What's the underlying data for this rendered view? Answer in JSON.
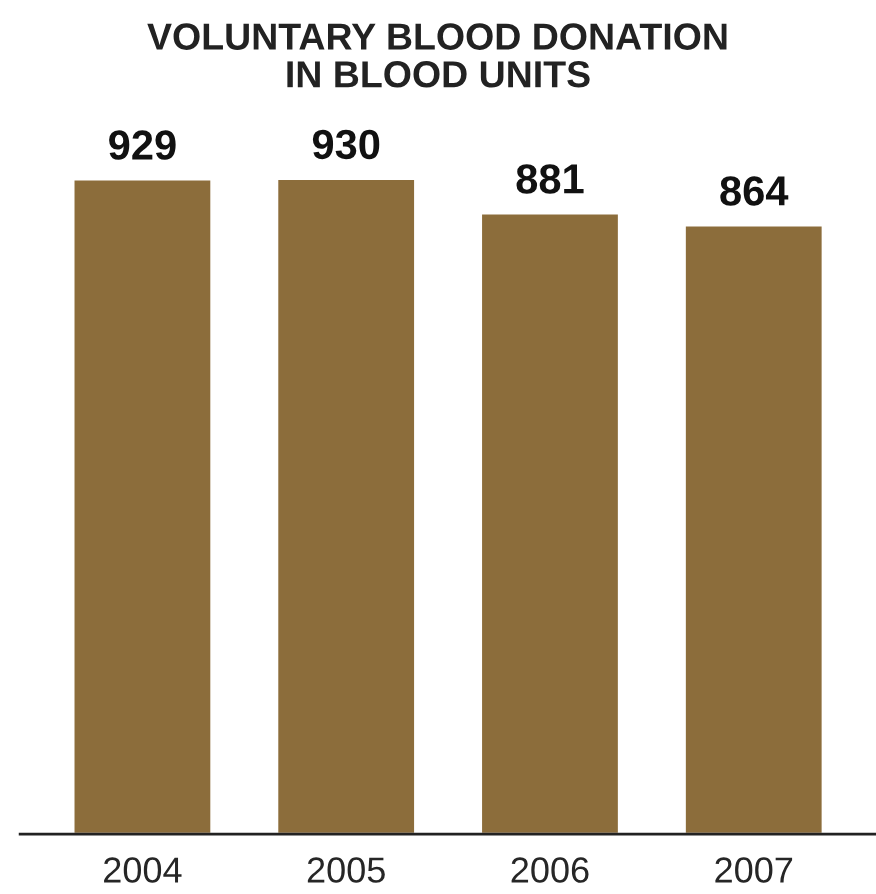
{
  "chart_data": {
    "type": "bar",
    "title": "VOLUNTARY BLOOD DONATION\nIN BLOOD UNITS",
    "categories": [
      "2004",
      "2005",
      "2006",
      "2007"
    ],
    "values": [
      929,
      930,
      881,
      864
    ],
    "color": "#8c6d3b",
    "data_labels": true,
    "grid": false,
    "tick_labels": "x"
  }
}
